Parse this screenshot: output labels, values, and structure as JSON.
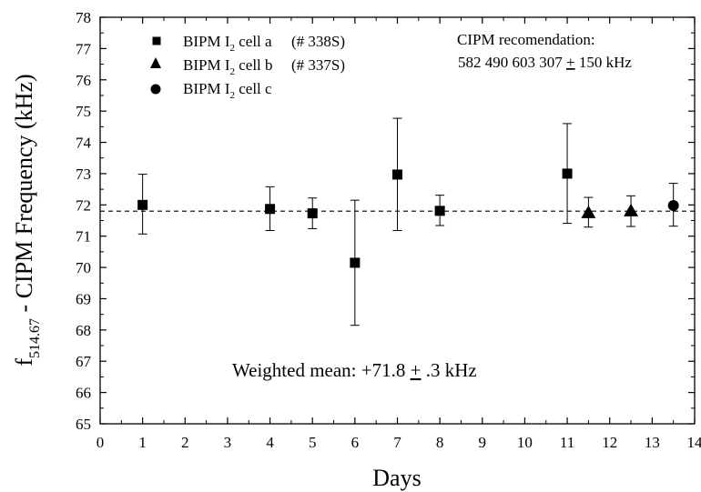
{
  "chart_data": {
    "type": "scatter",
    "xlabel": "Days",
    "ylabel": {
      "main": "f",
      "subscript": "514.67",
      "rest": " - CIPM Frequency (kHz)"
    },
    "xlim": [
      0,
      14
    ],
    "ylim": [
      65,
      78
    ],
    "xticks": [
      0,
      1,
      2,
      3,
      4,
      5,
      6,
      7,
      8,
      9,
      10,
      11,
      12,
      13,
      14
    ],
    "yticks": [
      65,
      66,
      67,
      68,
      69,
      70,
      71,
      72,
      73,
      74,
      75,
      76,
      77,
      78
    ],
    "grid": false,
    "legend_position": "top-left",
    "reference_line": {
      "y": 71.8,
      "style": "dashed"
    },
    "series": [
      {
        "name": "BIPM I2 cell a (# 338S)",
        "marker": "square",
        "points": [
          {
            "x": 1,
            "y": 72.0,
            "err_low": 71.07,
            "err_high": 72.98
          },
          {
            "x": 4,
            "y": 71.87,
            "err_low": 71.18,
            "err_high": 72.58
          },
          {
            "x": 5,
            "y": 71.73,
            "err_low": 71.24,
            "err_high": 72.22
          },
          {
            "x": 6,
            "y": 70.15,
            "err_low": 68.15,
            "err_high": 72.15
          },
          {
            "x": 7,
            "y": 72.97,
            "err_low": 71.18,
            "err_high": 74.77
          },
          {
            "x": 8,
            "y": 71.81,
            "err_low": 71.34,
            "err_high": 72.31
          },
          {
            "x": 11,
            "y": 73.0,
            "err_low": 71.41,
            "err_high": 74.6
          }
        ]
      },
      {
        "name": "BIPM I2 cell b (# 337S)",
        "marker": "triangle",
        "points": [
          {
            "x": 11.5,
            "y": 71.75,
            "err_low": 71.29,
            "err_high": 72.24
          },
          {
            "x": 12.5,
            "y": 71.81,
            "err_low": 71.31,
            "err_high": 72.29
          }
        ]
      },
      {
        "name": "BIPM I2 cell c",
        "marker": "circle",
        "points": [
          {
            "x": 13.5,
            "y": 71.98,
            "err_low": 71.32,
            "err_high": 72.69
          }
        ]
      }
    ],
    "legend_entries": [
      {
        "pre": "BIPM I",
        "sub": "2",
        "post": " cell a",
        "extra": "(# 338S)"
      },
      {
        "pre": "BIPM I",
        "sub": "2",
        "post": " cell b",
        "extra": "(# 337S)"
      },
      {
        "pre": "BIPM I",
        "sub": "2",
        "post": " cell c",
        "extra": ""
      }
    ],
    "annotations": {
      "cipm_title": "CIPM recomendation:",
      "cipm_value_a": "582 490 603 307",
      "cipm_pm": "+",
      "cipm_value_b": "150 kHz",
      "mean_label": "Weighted mean:",
      "mean_value_a": "+71.8",
      "mean_pm": "+",
      "mean_value_b": ".3 kHz"
    }
  }
}
